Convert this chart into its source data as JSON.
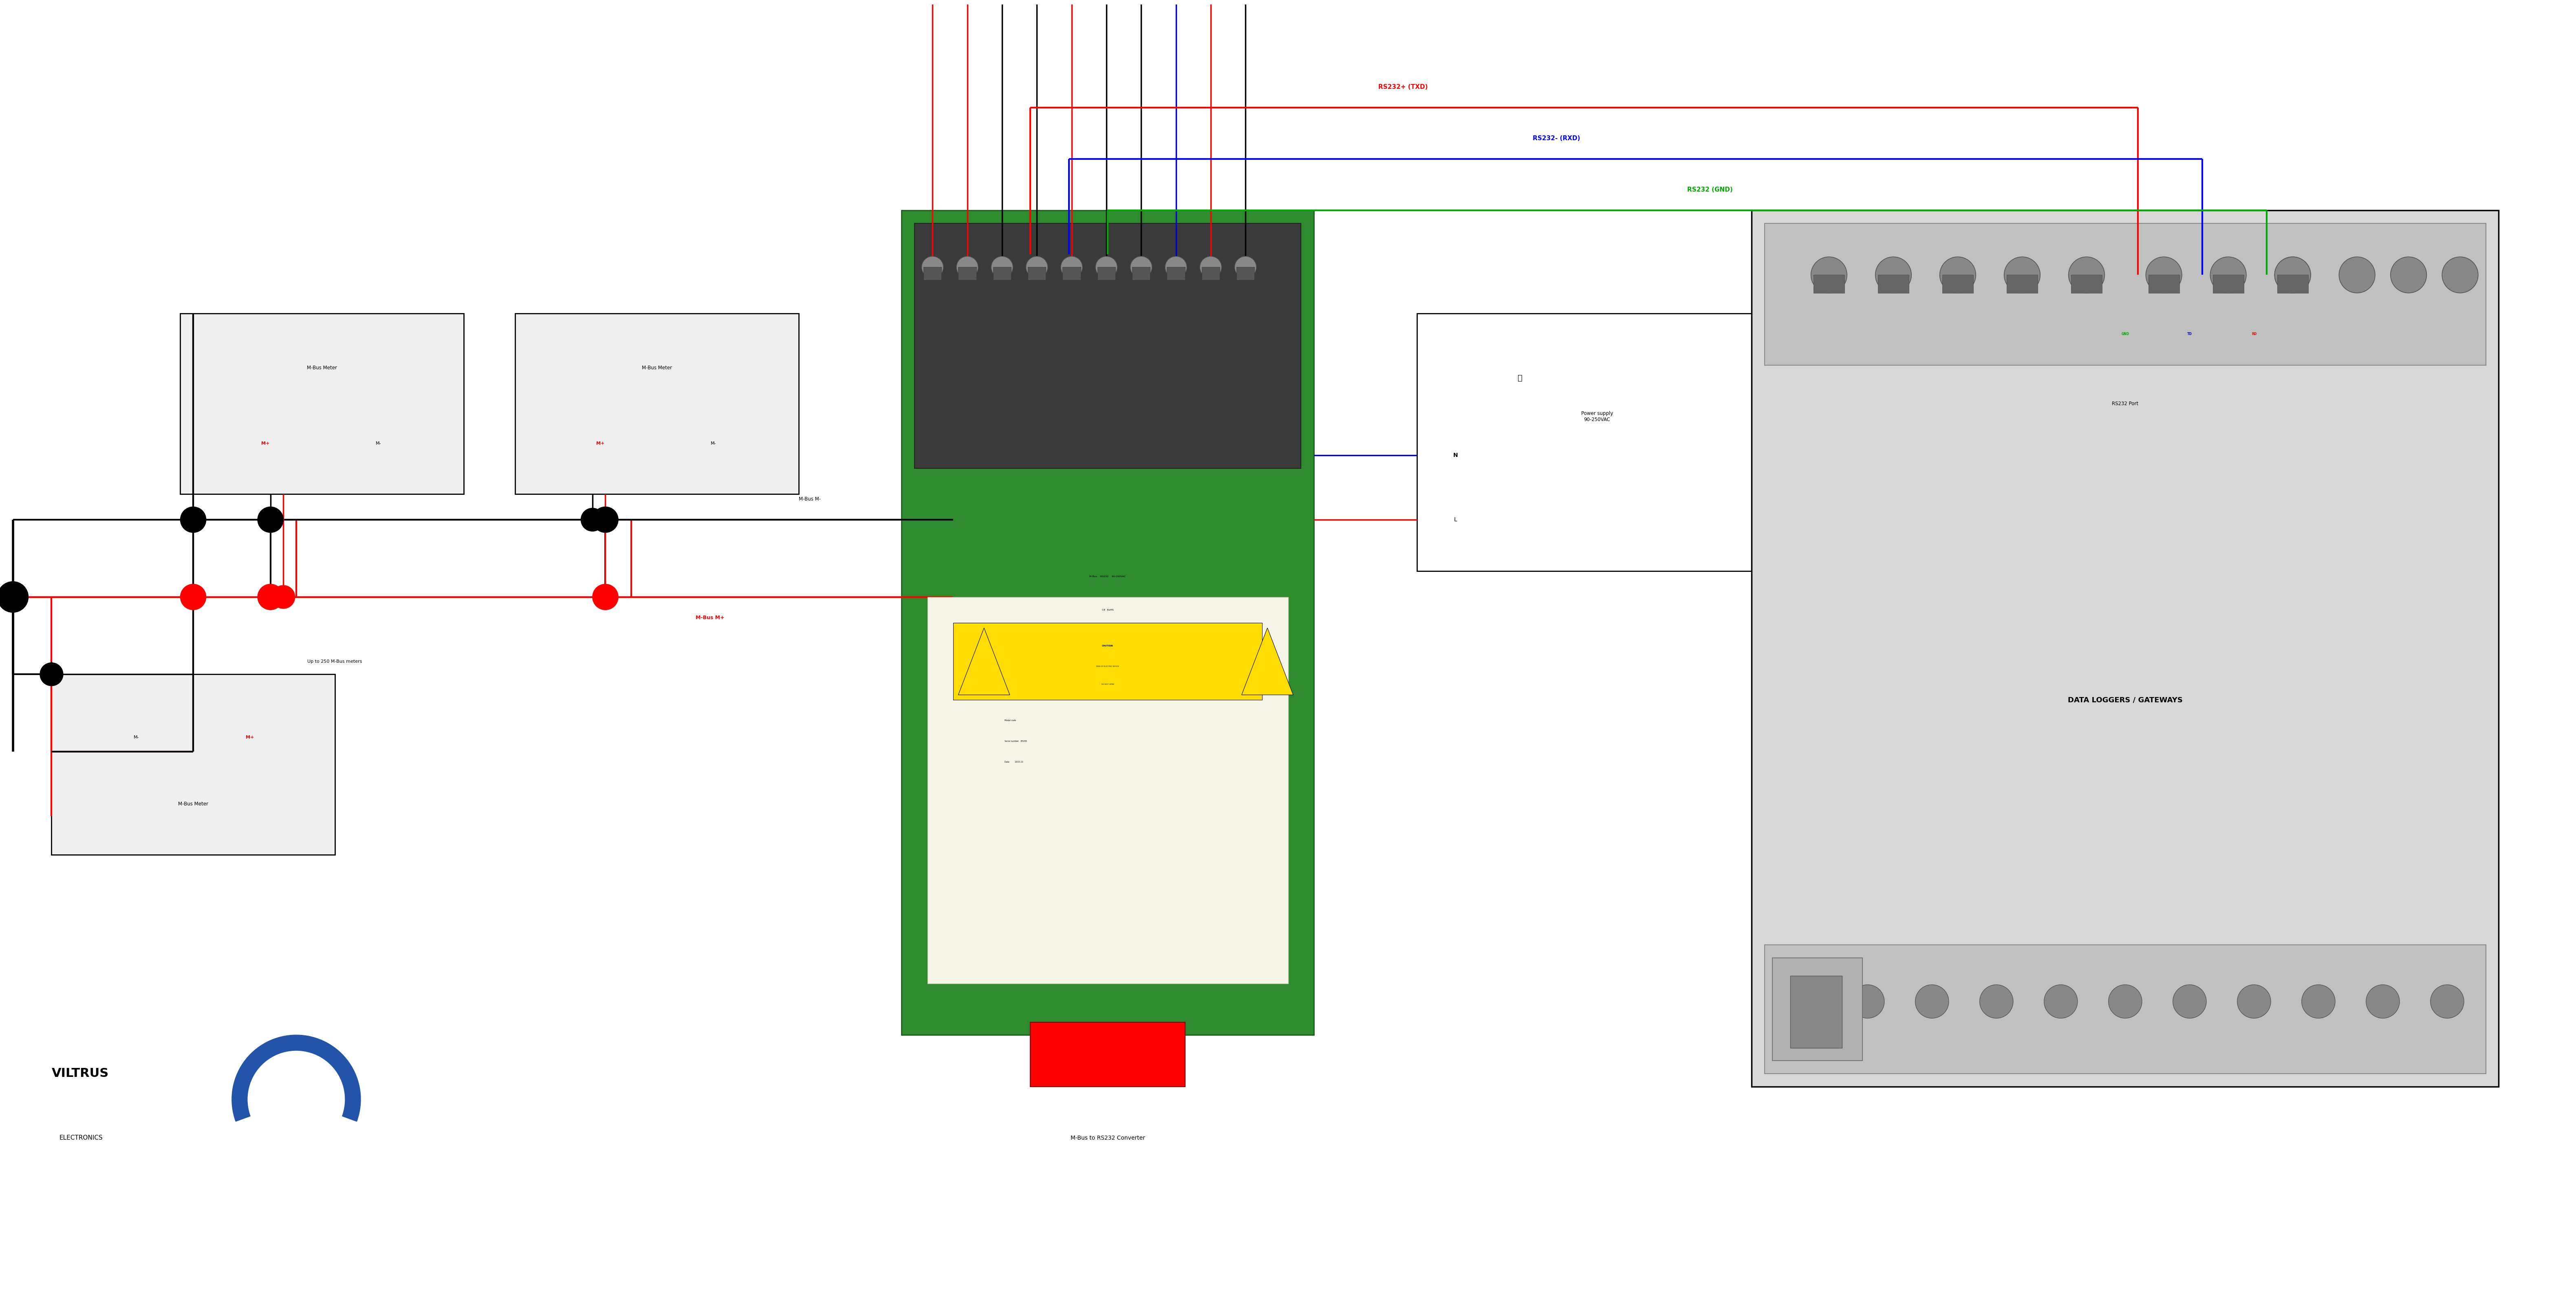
{
  "bg_color": "#ffffff",
  "fig_width": 63.21,
  "fig_height": 31.82,
  "title_rs232_txd": "RS232+ (TXD)",
  "title_rs232_rxd": "RS232- (RXD)",
  "title_rs232_gnd": "RS232 (GND)",
  "color_red": "#ff0000",
  "color_blue": "#0000ff",
  "color_green": "#00aa00",
  "color_black": "#000000",
  "color_gray_light": "#cccccc",
  "color_gray_med": "#aaaaaa",
  "color_gray_dark": "#888888",
  "color_green_device": "#2d8a2d",
  "color_yellow": "#ffdd00",
  "mbus_meter_label": "M-Bus Meter",
  "mbus_m_minus_label": "M-Bus M-",
  "mbus_m_plus_label": "M-Bus M+",
  "up_to_label": "Up to 250 M-Bus meters",
  "power_label": "Power supply\n90-250VAC",
  "rs232_port_label": "RS232 Port",
  "data_loggers_label": "DATA LOGGERS / GATEWAYS",
  "converter_label": "M-Bus to RS232 Converter",
  "gnd_label": "GND",
  "td_label": "TD",
  "rd_label": "RD",
  "viltrus_label": "VILTRUS",
  "electronics_label": "ELECTRONICS"
}
